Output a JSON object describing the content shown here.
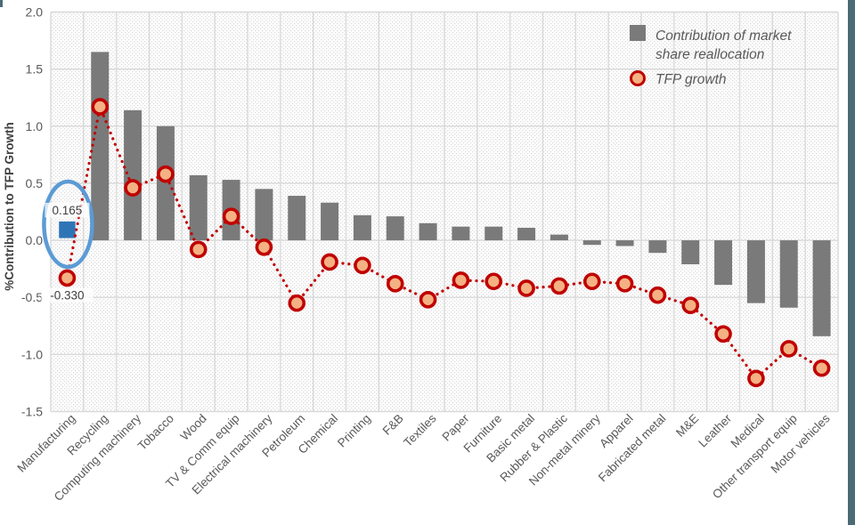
{
  "window": {
    "border_color": "#4B6A73"
  },
  "chart_data": {
    "type": "bar",
    "subtype": "combo-bar-line",
    "title": "",
    "xlabel": "",
    "ylabel": "%Contribution to TFP Growth",
    "ylim": [
      -1.5,
      2.0
    ],
    "ytick_step": 0.5,
    "yticks": [
      "2.0",
      "1.5",
      "1.0",
      "0.5",
      "0.0",
      "-0.5",
      "-1.0",
      "-1.5"
    ],
    "grid": "both",
    "legend_position": "top-right",
    "categories": [
      "Manufacturing",
      "Recycling",
      "Computing machinery",
      "Tobacco",
      "Wood",
      "TV & Comm equip",
      "Electrical machinery",
      "Petroleum",
      "Chemical",
      "Printing",
      "F&B",
      "Textiles",
      "Paper",
      "Furniture",
      "Basic metal",
      "Rubber & Plastic",
      "Non-metal minery",
      "Apparel",
      "Fabricated metal",
      "M&E",
      "Leather",
      "Medical",
      "Other transport equip",
      "Motor vehicles"
    ],
    "series": [
      {
        "name": "Contribution of market share reallocation",
        "legend_label_lines": [
          "Contribution of market",
          "share reallocation"
        ],
        "type": "bar",
        "values": [
          0.165,
          1.65,
          1.14,
          1.0,
          0.57,
          0.53,
          0.45,
          0.39,
          0.33,
          0.22,
          0.21,
          0.15,
          0.12,
          0.12,
          0.11,
          0.05,
          -0.04,
          -0.05,
          -0.11,
          -0.21,
          -0.39,
          -0.55,
          -0.59,
          -0.84
        ]
      },
      {
        "name": "TFP growth",
        "legend_label_lines": [
          "TFP growth"
        ],
        "type": "line",
        "line_style": "dotted",
        "marker": "circle",
        "values": [
          -0.33,
          1.17,
          0.46,
          0.58,
          -0.08,
          0.21,
          -0.06,
          -0.55,
          -0.19,
          -0.22,
          -0.38,
          -0.52,
          -0.35,
          -0.36,
          -0.42,
          -0.4,
          -0.36,
          -0.38,
          -0.48,
          -0.57,
          -0.82,
          -1.21,
          -0.95,
          -1.12
        ]
      }
    ],
    "special_bar": {
      "category": "Manufacturing",
      "value": 0.165,
      "shape": "square",
      "color": "#2E75B6"
    },
    "highlight": {
      "shape": "ellipse",
      "category": "Manufacturing",
      "color": "#5B9BD5"
    },
    "annotations": [
      {
        "text": "0.165",
        "category": "Manufacturing",
        "refers_to": "bar"
      },
      {
        "text": "-0.330",
        "category": "Manufacturing",
        "refers_to": "marker"
      }
    ],
    "colors": {
      "bar": "#7A7A7A",
      "line": "#C00000",
      "marker_fill": "#F4B183",
      "gridline": "#D9D9D9",
      "hatch_dot": "#DCDCDC",
      "tick_text": "#595959",
      "axis_title_text": "#404040",
      "annotation_text": "#404040",
      "legend_text": "#595959",
      "plot_bg": "#FFFFFF"
    }
  }
}
